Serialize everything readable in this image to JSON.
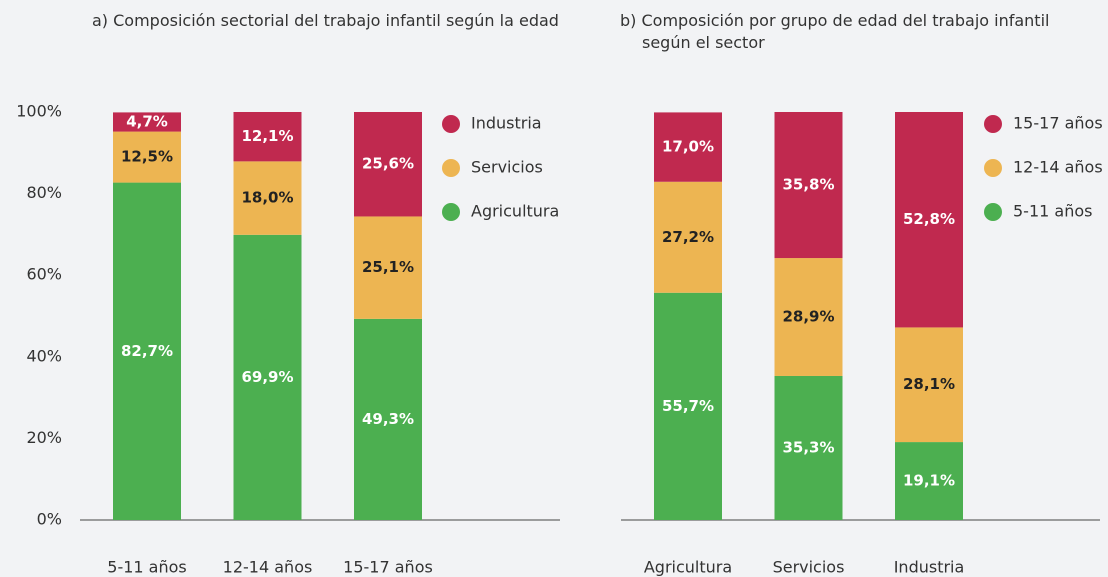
{
  "chart_data": [
    {
      "type": "stacked_bar",
      "title": "a)  Composición sectorial del trabajo infantil según la edad",
      "categories": [
        "5-11 años",
        "12-14 años",
        "15-17 años"
      ],
      "series": [
        {
          "name": "Agricultura",
          "color": "#4caf50",
          "values": [
            82.7,
            69.9,
            49.3
          ],
          "value_labels": [
            "82,7%",
            "69,9%",
            "49,3%"
          ]
        },
        {
          "name": "Servicios",
          "color": "#edb552",
          "values": [
            12.5,
            18.0,
            25.1
          ],
          "value_labels": [
            "12,5%",
            "18,0%",
            "25,1%"
          ]
        },
        {
          "name": "Industria",
          "color": "#c0294f",
          "values": [
            4.7,
            12.1,
            25.6
          ],
          "value_labels": [
            "4,7%",
            "12,1%",
            "25,6%"
          ]
        }
      ],
      "ylim": [
        0,
        100
      ],
      "yticks": [
        {
          "value": 0,
          "label": "0%"
        },
        {
          "value": 20,
          "label": "20%"
        },
        {
          "value": 40,
          "label": "40%"
        },
        {
          "value": 60,
          "label": "60%"
        },
        {
          "value": 80,
          "label": "80%"
        },
        {
          "value": 100,
          "label": "100%"
        }
      ],
      "legend": "right"
    },
    {
      "type": "stacked_bar",
      "title": "b) Composición por grupo de edad del trabajo infantil según el sector",
      "categories": [
        "Agricultura",
        "Servicios",
        "Industria"
      ],
      "series": [
        {
          "name": "5-11 años",
          "color": "#4caf50",
          "values": [
            55.7,
            35.3,
            19.1
          ],
          "value_labels": [
            "55,7%",
            "35,3%",
            "19,1%"
          ]
        },
        {
          "name": "12-14 años",
          "color": "#edb552",
          "values": [
            27.2,
            28.9,
            28.1
          ],
          "value_labels": [
            "27,2%",
            "28,9%",
            "28,1%"
          ]
        },
        {
          "name": "15-17 años",
          "color": "#c0294f",
          "values": [
            17.0,
            35.8,
            52.8
          ],
          "value_labels": [
            "17,0%",
            "35,8%",
            "52,8%"
          ]
        }
      ],
      "ylim": [
        0,
        100
      ],
      "legend": "right"
    }
  ]
}
